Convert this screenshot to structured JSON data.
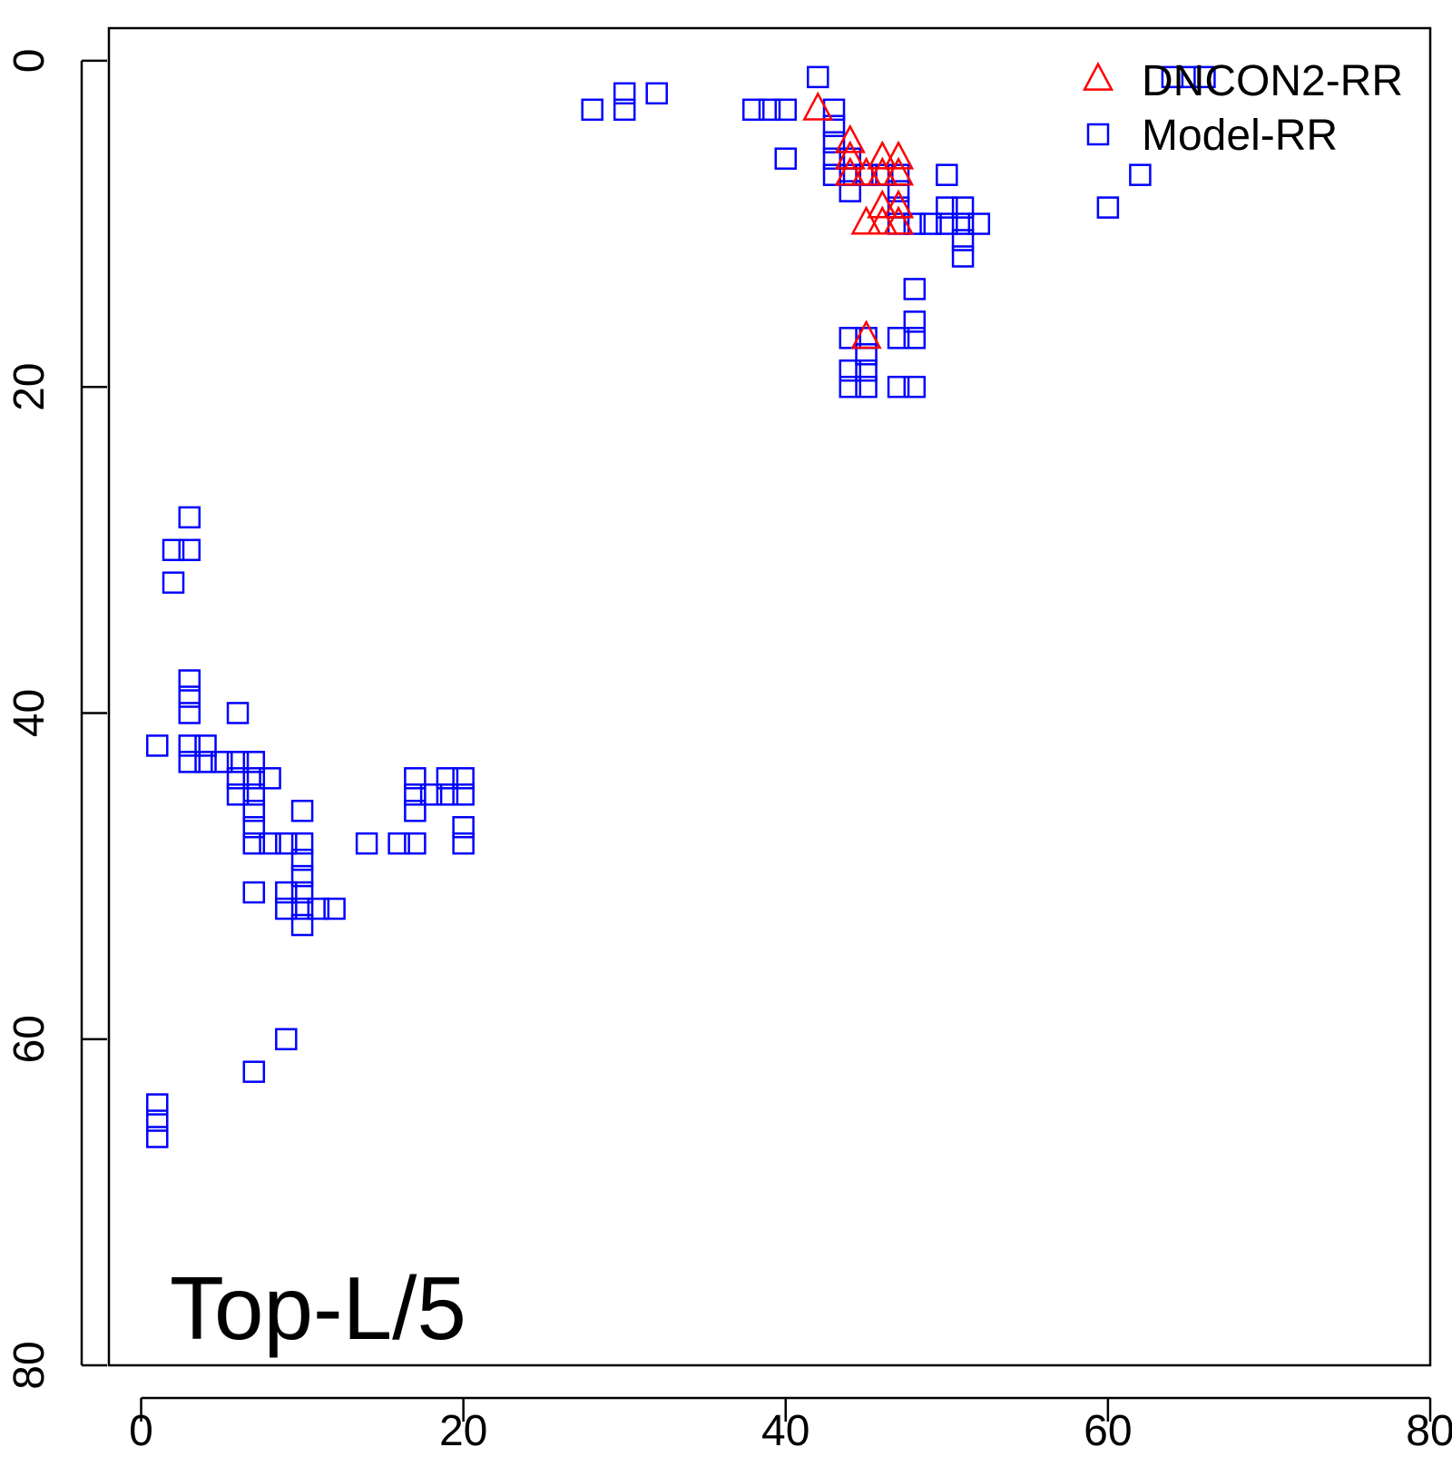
{
  "chart_data": {
    "type": "scatter",
    "title": "",
    "annotation": "Top-L/5",
    "xlabel": "",
    "ylabel": "",
    "xlim": [
      -2,
      80
    ],
    "ylim": [
      80,
      -2
    ],
    "y_reversed": true,
    "x_ticks": [
      0,
      20,
      40,
      60,
      80
    ],
    "y_ticks": [
      0,
      20,
      40,
      60,
      80
    ],
    "x_tick_labels": [
      "0",
      "20",
      "40",
      "60",
      "80"
    ],
    "y_tick_labels": [
      "0",
      "20",
      "40",
      "60",
      "80"
    ],
    "grid": false,
    "legend_position": "top-right",
    "legend": [
      {
        "label": "DNCON2-RR",
        "marker": "triangle",
        "color": "#ff0000"
      },
      {
        "label": "Model-RR",
        "marker": "square",
        "color": "#0000ff"
      }
    ],
    "series": [
      {
        "name": "Model-RR",
        "marker": "square",
        "color": "#0000ff",
        "points": [
          [
            42,
            1
          ],
          [
            43,
            3
          ],
          [
            43,
            4
          ],
          [
            43,
            5
          ],
          [
            43,
            6
          ],
          [
            43,
            7
          ],
          [
            44,
            6
          ],
          [
            44,
            7
          ],
          [
            44,
            8
          ],
          [
            45,
            7
          ],
          [
            46,
            7
          ],
          [
            47,
            7
          ],
          [
            47,
            8
          ],
          [
            47,
            9
          ],
          [
            47,
            10
          ],
          [
            48,
            10
          ],
          [
            49,
            10
          ],
          [
            50,
            7
          ],
          [
            50,
            9
          ],
          [
            50,
            10
          ],
          [
            51,
            9
          ],
          [
            51,
            10
          ],
          [
            51,
            11
          ],
          [
            51,
            12
          ],
          [
            52,
            10
          ],
          [
            28,
            3
          ],
          [
            30,
            2
          ],
          [
            30,
            3
          ],
          [
            32,
            2
          ],
          [
            38,
            3
          ],
          [
            39,
            3
          ],
          [
            40,
            3
          ],
          [
            40,
            6
          ],
          [
            60,
            9
          ],
          [
            62,
            7
          ],
          [
            64,
            1
          ],
          [
            65,
            1
          ],
          [
            66,
            1
          ],
          [
            48,
            14
          ],
          [
            48,
            16
          ],
          [
            48,
            17
          ],
          [
            47,
            17
          ],
          [
            44,
            17
          ],
          [
            45,
            17
          ],
          [
            45,
            18
          ],
          [
            45,
            19
          ],
          [
            44,
            19
          ],
          [
            44,
            20
          ],
          [
            45,
            20
          ],
          [
            47,
            20
          ],
          [
            48,
            20
          ],
          [
            3,
            28
          ],
          [
            2,
            30
          ],
          [
            3,
            30
          ],
          [
            2,
            32
          ],
          [
            3,
            38
          ],
          [
            3,
            39
          ],
          [
            3,
            40
          ],
          [
            6,
            40
          ],
          [
            1,
            42
          ],
          [
            3,
            42
          ],
          [
            4,
            42
          ],
          [
            3,
            43
          ],
          [
            4,
            43
          ],
          [
            5,
            43
          ],
          [
            6,
            43
          ],
          [
            7,
            43
          ],
          [
            6,
            44
          ],
          [
            7,
            44
          ],
          [
            8,
            44
          ],
          [
            6,
            45
          ],
          [
            7,
            45
          ],
          [
            7,
            46
          ],
          [
            7,
            47
          ],
          [
            7,
            48
          ],
          [
            8,
            48
          ],
          [
            9,
            48
          ],
          [
            10,
            46
          ],
          [
            10,
            48
          ],
          [
            10,
            49
          ],
          [
            10,
            50
          ],
          [
            10,
            51
          ],
          [
            7,
            51
          ],
          [
            9,
            51
          ],
          [
            9,
            52
          ],
          [
            10,
            52
          ],
          [
            11,
            52
          ],
          [
            12,
            52
          ],
          [
            10,
            53
          ],
          [
            14,
            48
          ],
          [
            16,
            48
          ],
          [
            17,
            48
          ],
          [
            17,
            46
          ],
          [
            17,
            45
          ],
          [
            17,
            44
          ],
          [
            18,
            45
          ],
          [
            19,
            44
          ],
          [
            19,
            45
          ],
          [
            20,
            44
          ],
          [
            20,
            45
          ],
          [
            20,
            47
          ],
          [
            20,
            48
          ],
          [
            9,
            60
          ],
          [
            7,
            62
          ],
          [
            1,
            64
          ],
          [
            1,
            65
          ],
          [
            1,
            66
          ]
        ]
      },
      {
        "name": "DNCON2-RR",
        "marker": "triangle",
        "color": "#ff0000",
        "points": [
          [
            42,
            3
          ],
          [
            44,
            5
          ],
          [
            44,
            6
          ],
          [
            44,
            7
          ],
          [
            45,
            7
          ],
          [
            46,
            6
          ],
          [
            46,
            7
          ],
          [
            47,
            6
          ],
          [
            47,
            7
          ],
          [
            46,
            9
          ],
          [
            47,
            9
          ],
          [
            45,
            10
          ],
          [
            46,
            10
          ],
          [
            47,
            10
          ],
          [
            45,
            17
          ]
        ]
      }
    ]
  }
}
